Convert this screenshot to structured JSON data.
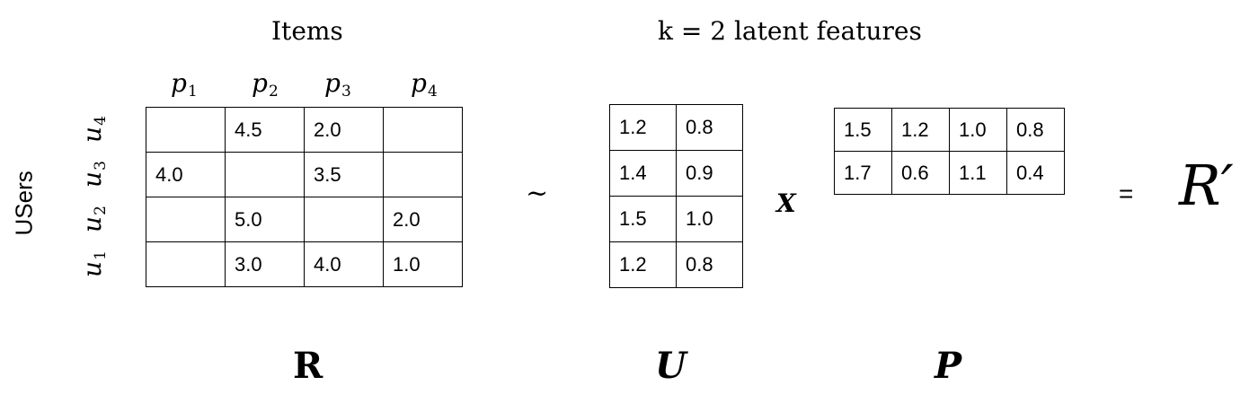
{
  "headings": {
    "items": "Items",
    "latent": "k = 2 latent features",
    "users": "USers"
  },
  "items": [
    {
      "symbol": "p",
      "index": "1"
    },
    {
      "symbol": "p",
      "index": "2"
    },
    {
      "symbol": "p",
      "index": "3"
    },
    {
      "symbol": "p",
      "index": "4"
    }
  ],
  "users": [
    {
      "symbol": "u",
      "index": "4"
    },
    {
      "symbol": "u",
      "index": "3"
    },
    {
      "symbol": "u",
      "index": "2"
    },
    {
      "symbol": "u",
      "index": "1"
    }
  ],
  "matrix_r": {
    "name": "R",
    "rows": [
      [
        "",
        "4.5",
        "2.0",
        ""
      ],
      [
        "4.0",
        "",
        "3.5",
        ""
      ],
      [
        "",
        "5.0",
        "",
        "2.0"
      ],
      [
        "",
        "3.0",
        "4.0",
        "1.0"
      ]
    ]
  },
  "matrix_u": {
    "name": "U",
    "rows": [
      [
        "1.2",
        "0.8"
      ],
      [
        "1.4",
        "0.9"
      ],
      [
        "1.5",
        "1.0"
      ],
      [
        "1.2",
        "0.8"
      ]
    ]
  },
  "matrix_p": {
    "name": "P",
    "rows": [
      [
        "1.5",
        "1.2",
        "1.0",
        "0.8"
      ],
      [
        "1.7",
        "0.6",
        "1.1",
        "0.4"
      ]
    ]
  },
  "operators": {
    "approx": "~",
    "times": "X",
    "equals": "=",
    "result": "R′"
  }
}
